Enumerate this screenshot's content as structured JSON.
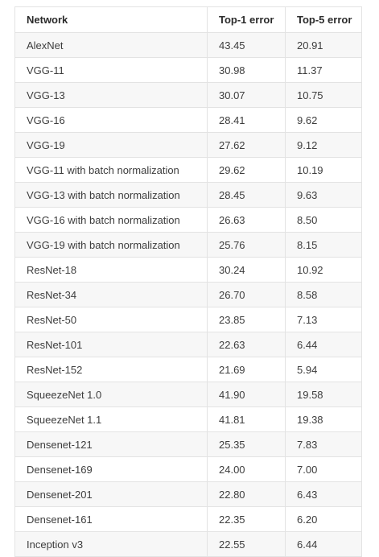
{
  "table": {
    "headers": [
      "Network",
      "Top-1 error",
      "Top-5 error"
    ],
    "rows": [
      [
        "AlexNet",
        "43.45",
        "20.91"
      ],
      [
        "VGG-11",
        "30.98",
        "11.37"
      ],
      [
        "VGG-13",
        "30.07",
        "10.75"
      ],
      [
        "VGG-16",
        "28.41",
        "9.62"
      ],
      [
        "VGG-19",
        "27.62",
        "9.12"
      ],
      [
        "VGG-11 with batch normalization",
        "29.62",
        "10.19"
      ],
      [
        "VGG-13 with batch normalization",
        "28.45",
        "9.63"
      ],
      [
        "VGG-16 with batch normalization",
        "26.63",
        "8.50"
      ],
      [
        "VGG-19 with batch normalization",
        "25.76",
        "8.15"
      ],
      [
        "ResNet-18",
        "30.24",
        "10.92"
      ],
      [
        "ResNet-34",
        "26.70",
        "8.58"
      ],
      [
        "ResNet-50",
        "23.85",
        "7.13"
      ],
      [
        "ResNet-101",
        "22.63",
        "6.44"
      ],
      [
        "ResNet-152",
        "21.69",
        "5.94"
      ],
      [
        "SqueezeNet 1.0",
        "41.90",
        "19.58"
      ],
      [
        "SqueezeNet 1.1",
        "41.81",
        "19.38"
      ],
      [
        "Densenet-121",
        "25.35",
        "7.83"
      ],
      [
        "Densenet-169",
        "24.00",
        "7.00"
      ],
      [
        "Densenet-201",
        "22.80",
        "6.43"
      ],
      [
        "Densenet-161",
        "22.35",
        "6.20"
      ],
      [
        "Inception v3",
        "22.55",
        "6.44"
      ]
    ]
  }
}
